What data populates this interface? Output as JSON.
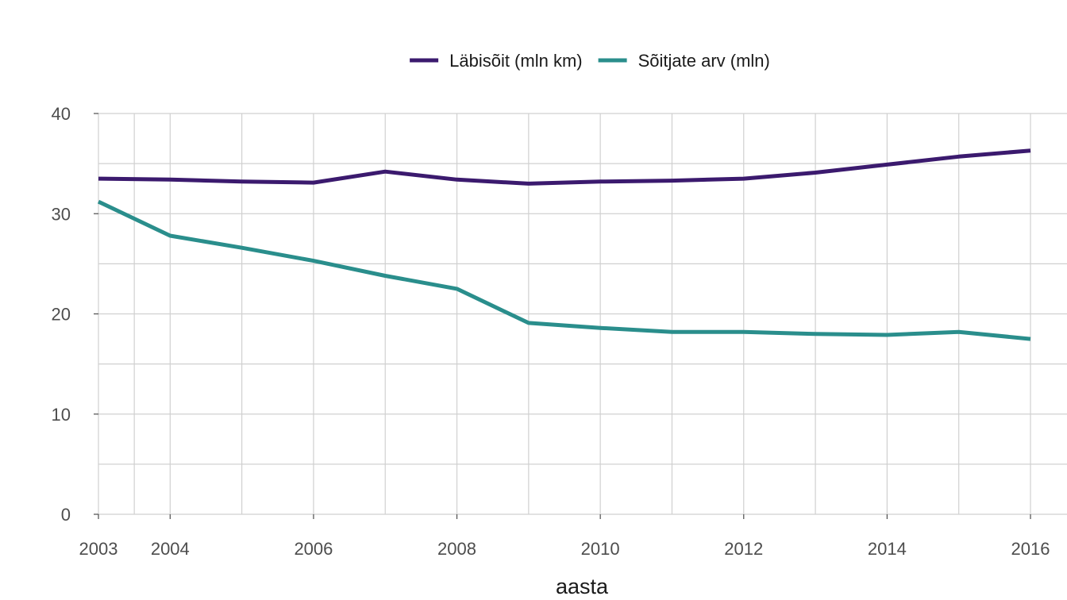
{
  "chart_data": {
    "type": "line",
    "xlabel": "aasta",
    "ylabel": "",
    "title": "",
    "legend_position": "top",
    "grid": true,
    "xlim": [
      2003,
      2016
    ],
    "ylim": [
      0,
      40
    ],
    "x_ticks": [
      2003,
      2004,
      2006,
      2008,
      2010,
      2012,
      2014,
      2016
    ],
    "x_minor_gridlines": [
      2003.5,
      2005,
      2007,
      2009,
      2011,
      2013,
      2015
    ],
    "y_ticks": [
      0,
      10,
      20,
      30,
      40
    ],
    "x": [
      2003,
      2004,
      2005,
      2006,
      2007,
      2008,
      2009,
      2010,
      2011,
      2012,
      2013,
      2014,
      2015,
      2016
    ],
    "series": [
      {
        "name": "Läbisõit (mln km)",
        "color": "#3b1a6e",
        "values": [
          33.5,
          33.4,
          33.2,
          33.1,
          34.2,
          33.4,
          33.0,
          33.2,
          33.3,
          33.5,
          34.1,
          34.9,
          35.7,
          36.3
        ]
      },
      {
        "name": "Sõitjate arv (mln)",
        "color": "#2a8e8c",
        "values": [
          31.2,
          27.8,
          26.6,
          25.3,
          23.8,
          22.5,
          19.1,
          18.6,
          18.2,
          18.2,
          18.0,
          17.9,
          18.2,
          17.5
        ]
      }
    ]
  }
}
